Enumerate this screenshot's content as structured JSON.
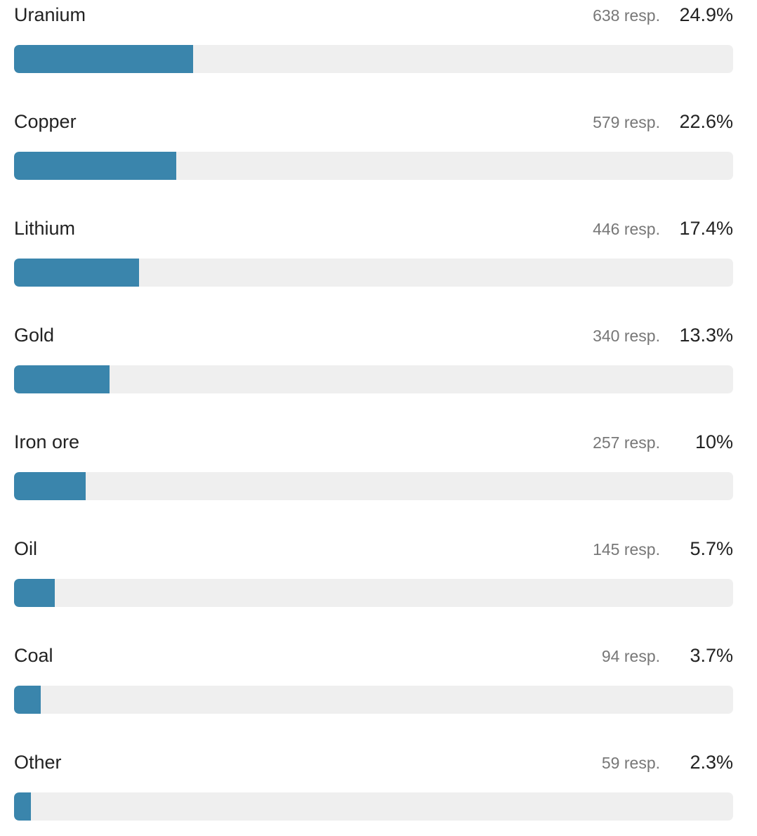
{
  "chart_data": {
    "type": "bar",
    "orientation": "horizontal",
    "categories": [
      "Uranium",
      "Copper",
      "Lithium",
      "Gold",
      "Iron ore",
      "Oil",
      "Coal",
      "Other"
    ],
    "responses": [
      "638 resp.",
      "579 resp.",
      "446 resp.",
      "340 resp.",
      "257 resp.",
      "145 resp.",
      "94 resp.",
      "59 resp."
    ],
    "percent_labels": [
      "24.9%",
      "22.6%",
      "17.4%",
      "13.3%",
      "10%",
      "5.7%",
      "3.7%",
      "2.3%"
    ],
    "values": [
      24.9,
      22.6,
      17.4,
      13.3,
      10,
      5.7,
      3.7,
      2.3
    ],
    "xlim": [
      0,
      100
    ],
    "grid": false,
    "colors": {
      "bar": "#3a85ac",
      "track": "#efefef"
    }
  }
}
